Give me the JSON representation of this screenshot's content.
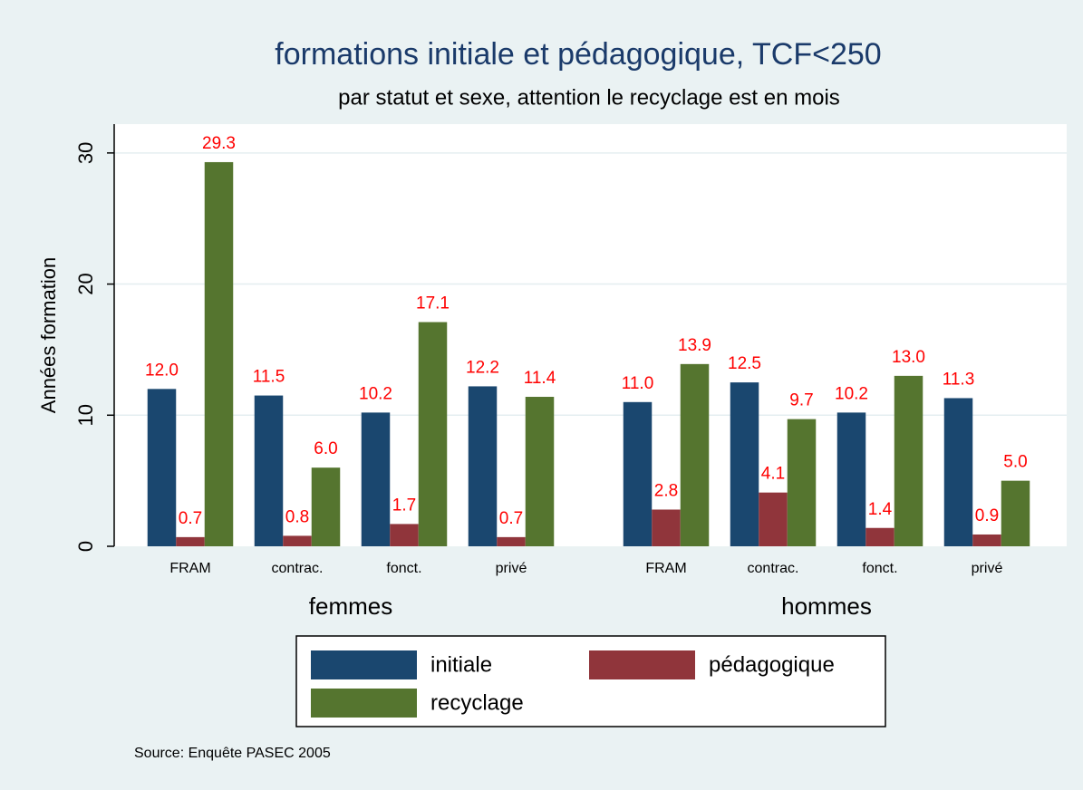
{
  "chart_data": {
    "type": "bar",
    "title": "formations initiale et pédagogique, TCF<250",
    "subtitle": "par statut et sexe, attention le recyclage est en mois",
    "y_label": "Années formation",
    "note": "Source:  Enquête PASEC 2005",
    "groups": [
      "femmes",
      "hommes"
    ],
    "categories": [
      "FRAM",
      "contrac.",
      "fonct.",
      "privé",
      "FRAM",
      "contrac.",
      "fonct.",
      "privé"
    ],
    "series": [
      {
        "name": "initiale",
        "color": "#1a476f",
        "values": [
          12.0,
          11.5,
          10.2,
          12.2,
          11.0,
          12.5,
          10.2,
          11.3
        ],
        "value_labels": [
          "12.0",
          "11.5",
          "10.2",
          "12.2",
          "11.0",
          "12.5",
          "10.2",
          "11.3"
        ]
      },
      {
        "name": "pédagogique",
        "color": "#90353b",
        "values": [
          0.7,
          0.8,
          1.7,
          0.7,
          2.8,
          4.1,
          1.4,
          0.9
        ],
        "value_labels": [
          "0.7",
          "0.8",
          "1.7",
          "0.7",
          "2.8",
          "4.1",
          "1.4",
          "0.9"
        ]
      },
      {
        "name": "recyclage",
        "color": "#55752f",
        "values": [
          29.3,
          6.0,
          17.1,
          11.4,
          13.9,
          9.7,
          13.0,
          5.0
        ],
        "value_labels": [
          "29.3",
          "6.0",
          "17.1",
          "11.4",
          "13.9",
          "9.7",
          "13.0",
          "5.0"
        ]
      }
    ],
    "value_label_color": "#ff0000",
    "ylim": [
      0,
      32.2
    ],
    "yticks": [
      0,
      10,
      20,
      30
    ],
    "grid": true
  }
}
